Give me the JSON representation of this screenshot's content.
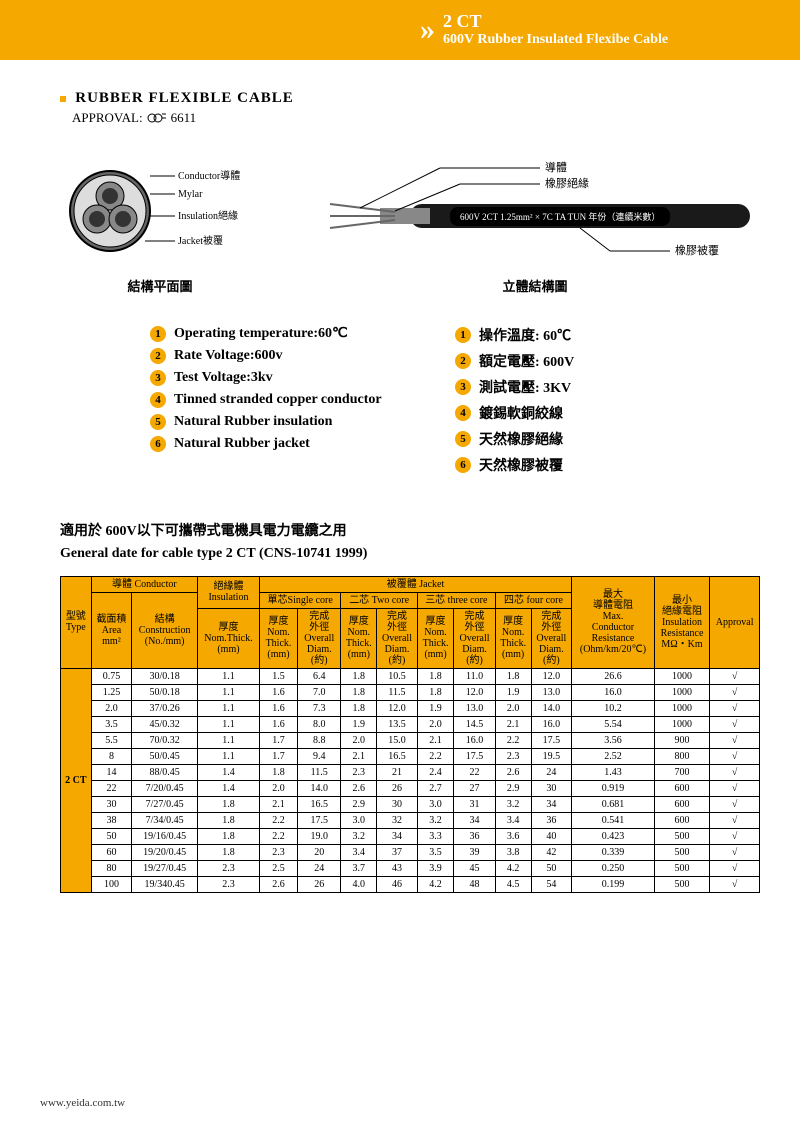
{
  "header": {
    "product_code": "2 CT",
    "subtitle": "600V Rubber Insulated Flexibe Cable"
  },
  "main_title": "RUBBER  FLEXIBLE  CABLE",
  "approval_label": "APPROVAL:",
  "approval_number": "6611",
  "diagram_left": {
    "labels": {
      "conductor": "Conductor導體",
      "mylar": "Mylar",
      "insulation": "Insulation絕緣",
      "jacket": "Jacket被覆"
    },
    "caption": "結構平面圖"
  },
  "diagram_right": {
    "labels": {
      "conductor": "導體",
      "rubber_insulation": "橡膠絕緣",
      "rubber_jacket": "橡膠被覆"
    },
    "cable_text": "600V 2CT 1.25mm² × 7C TA TUN 年份（連續米數）",
    "caption": "立體結構圖"
  },
  "specs_en": [
    "Operating temperature:60℃",
    "Rate Voltage:600v",
    "Test Voltage:3kv",
    "Tinned stranded copper conductor",
    "Natural Rubber insulation",
    "Natural Rubber jacket"
  ],
  "specs_zh": [
    "操作溫度: 60℃",
    "額定電壓: 600V",
    "測試電壓: 3KV",
    "鍍錫軟銅絞線",
    "天然橡膠絕緣",
    "天然橡膠被覆"
  ],
  "table_intro_zh": "適用於 600V以下可攜帶式電機具電力電纜之用",
  "table_intro_en": "General date for cable type 2 CT (CNS-10741 1999)",
  "table": {
    "headers": {
      "type": "型號\nType",
      "conductor": "導體 Conductor",
      "insulation": "絕緣體\nInsulation",
      "jacket": "被覆體   Jacket",
      "single": "單芯Single core",
      "two": "二芯 Two core",
      "three": "三芯 three core",
      "four": "四芯 four core",
      "area": "截面積\nArea\nmm²",
      "construction": "結構\nConstruction\n(No./mm)",
      "nomthick": "厚度\nNom.Thick.\n(mm)",
      "nom": "厚度\nNom.\nThick.\n(mm)",
      "overall": "完成\n外徑\nOverall\nDiam.\n(約)",
      "maxres": "最大\n導體電阻\nMax.\nConductor\nResistance\n(Ohm/km/20℃)",
      "insres": "最小\n絕緣電阻\nInsulation\nResistance\nMΩ・Km",
      "approval": "Approval"
    },
    "type_label": "2 CT",
    "rows": [
      [
        "0.75",
        "30/0.18",
        "1.1",
        "1.5",
        "6.4",
        "1.8",
        "10.5",
        "1.8",
        "11.0",
        "1.8",
        "12.0",
        "26.6",
        "1000",
        "√"
      ],
      [
        "1.25",
        "50/0.18",
        "1.1",
        "1.6",
        "7.0",
        "1.8",
        "11.5",
        "1.8",
        "12.0",
        "1.9",
        "13.0",
        "16.0",
        "1000",
        "√"
      ],
      [
        "2.0",
        "37/0.26",
        "1.1",
        "1.6",
        "7.3",
        "1.8",
        "12.0",
        "1.9",
        "13.0",
        "2.0",
        "14.0",
        "10.2",
        "1000",
        "√"
      ],
      [
        "3.5",
        "45/0.32",
        "1.1",
        "1.6",
        "8.0",
        "1.9",
        "13.5",
        "2.0",
        "14.5",
        "2.1",
        "16.0",
        "5.54",
        "1000",
        "√"
      ],
      [
        "5.5",
        "70/0.32",
        "1.1",
        "1.7",
        "8.8",
        "2.0",
        "15.0",
        "2.1",
        "16.0",
        "2.2",
        "17.5",
        "3.56",
        "900",
        "√"
      ],
      [
        "8",
        "50/0.45",
        "1.1",
        "1.7",
        "9.4",
        "2.1",
        "16.5",
        "2.2",
        "17.5",
        "2.3",
        "19.5",
        "2.52",
        "800",
        "√"
      ],
      [
        "14",
        "88/0.45",
        "1.4",
        "1.8",
        "11.5",
        "2.3",
        "21",
        "2.4",
        "22",
        "2.6",
        "24",
        "1.43",
        "700",
        "√"
      ],
      [
        "22",
        "7/20/0.45",
        "1.4",
        "2.0",
        "14.0",
        "2.6",
        "26",
        "2.7",
        "27",
        "2.9",
        "30",
        "0.919",
        "600",
        "√"
      ],
      [
        "30",
        "7/27/0.45",
        "1.8",
        "2.1",
        "16.5",
        "2.9",
        "30",
        "3.0",
        "31",
        "3.2",
        "34",
        "0.681",
        "600",
        "√"
      ],
      [
        "38",
        "7/34/0.45",
        "1.8",
        "2.2",
        "17.5",
        "3.0",
        "32",
        "3.2",
        "34",
        "3.4",
        "36",
        "0.541",
        "600",
        "√"
      ],
      [
        "50",
        "19/16/0.45",
        "1.8",
        "2.2",
        "19.0",
        "3.2",
        "34",
        "3.3",
        "36",
        "3.6",
        "40",
        "0.423",
        "500",
        "√"
      ],
      [
        "60",
        "19/20/0.45",
        "1.8",
        "2.3",
        "20",
        "3.4",
        "37",
        "3.5",
        "39",
        "3.8",
        "42",
        "0.339",
        "500",
        "√"
      ],
      [
        "80",
        "19/27/0.45",
        "2.3",
        "2.5",
        "24",
        "3.7",
        "43",
        "3.9",
        "45",
        "4.2",
        "50",
        "0.250",
        "500",
        "√"
      ],
      [
        "100",
        "19/340.45",
        "2.3",
        "2.6",
        "26",
        "4.0",
        "46",
        "4.2",
        "48",
        "4.5",
        "54",
        "0.199",
        "500",
        "√"
      ]
    ]
  },
  "footer": "www.yeida.com.tw",
  "colors": {
    "brand": "#f4a800",
    "black": "#000000",
    "white": "#ffffff"
  }
}
